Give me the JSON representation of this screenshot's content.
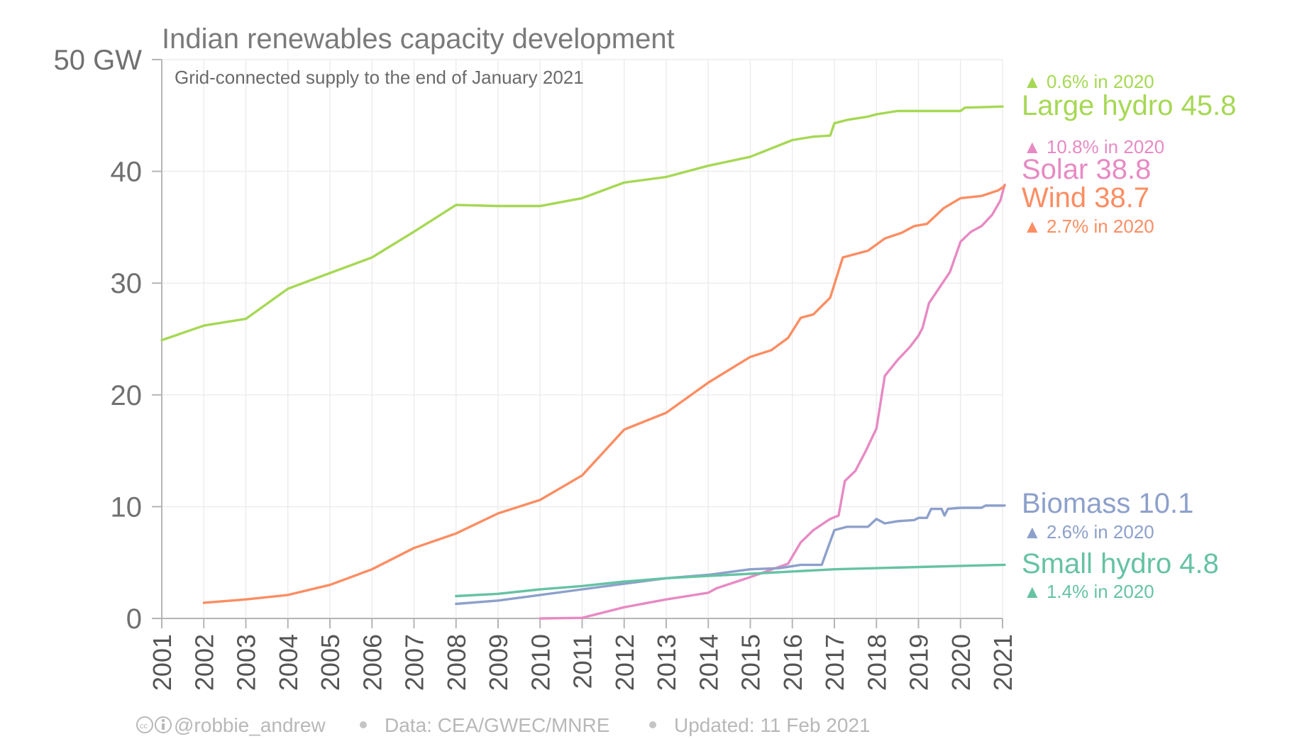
{
  "chart_data": {
    "type": "line",
    "title": "Indian renewables capacity development",
    "subtitle": "Grid-connected supply to the end of January 2021",
    "ylabel": "",
    "xlabel": "",
    "ylim": [
      0,
      50
    ],
    "xlim": [
      2001,
      2021
    ],
    "y_ticks": [
      "0",
      "10",
      "20",
      "30",
      "40",
      "50 GW"
    ],
    "x_ticks": [
      "2001",
      "2002",
      "2003",
      "2004",
      "2005",
      "2006",
      "2007",
      "2008",
      "2009",
      "2010",
      "2011",
      "2012",
      "2013",
      "2014",
      "2015",
      "2016",
      "2017",
      "2018",
      "2019",
      "2020",
      "2021"
    ],
    "grid": true,
    "legend": "right, labels next to line ends",
    "series": [
      {
        "name": "Large hydro",
        "label": "Large hydro 45.8",
        "change": "▲ 0.6% in 2020",
        "color": "#a6d854",
        "points": [
          [
            2001,
            24.9
          ],
          [
            2002,
            26.2
          ],
          [
            2003,
            26.8
          ],
          [
            2004,
            29.5
          ],
          [
            2005,
            30.9
          ],
          [
            2006,
            32.3
          ],
          [
            2007,
            34.6
          ],
          [
            2008,
            37.0
          ],
          [
            2009,
            36.9
          ],
          [
            2010,
            36.9
          ],
          [
            2011,
            37.6
          ],
          [
            2012,
            39.0
          ],
          [
            2013,
            39.5
          ],
          [
            2014,
            40.5
          ],
          [
            2015,
            41.3
          ],
          [
            2016,
            42.8
          ],
          [
            2016.5,
            43.1
          ],
          [
            2016.9,
            43.2
          ],
          [
            2017.0,
            44.3
          ],
          [
            2017.3,
            44.6
          ],
          [
            2017.8,
            44.9
          ],
          [
            2018.0,
            45.1
          ],
          [
            2018.5,
            45.4
          ],
          [
            2019.0,
            45.4
          ],
          [
            2019.5,
            45.4
          ],
          [
            2020.0,
            45.4
          ],
          [
            2020.1,
            45.7
          ],
          [
            2021.0,
            45.8
          ]
        ]
      },
      {
        "name": "Solar",
        "label": "Solar 38.8",
        "change": "▲ 10.8% in 2020",
        "color": "#e78ac3",
        "points": [
          [
            2010.0,
            0.0
          ],
          [
            2011.0,
            0.05
          ],
          [
            2012.0,
            1.0
          ],
          [
            2013.0,
            1.7
          ],
          [
            2014.0,
            2.3
          ],
          [
            2014.2,
            2.7
          ],
          [
            2015.0,
            3.7
          ],
          [
            2015.9,
            4.9
          ],
          [
            2016.2,
            6.8
          ],
          [
            2016.5,
            7.9
          ],
          [
            2016.9,
            8.9
          ],
          [
            2017.1,
            9.2
          ],
          [
            2017.25,
            12.3
          ],
          [
            2017.5,
            13.2
          ],
          [
            2017.75,
            15.0
          ],
          [
            2018.0,
            17.0
          ],
          [
            2018.2,
            21.7
          ],
          [
            2018.5,
            23.1
          ],
          [
            2018.8,
            24.3
          ],
          [
            2019.0,
            25.3
          ],
          [
            2019.1,
            26.0
          ],
          [
            2019.25,
            28.2
          ],
          [
            2019.5,
            29.6
          ],
          [
            2019.75,
            31.0
          ],
          [
            2020.0,
            33.7
          ],
          [
            2020.25,
            34.6
          ],
          [
            2020.5,
            35.1
          ],
          [
            2020.75,
            36.1
          ],
          [
            2020.95,
            37.4
          ],
          [
            2021.05,
            38.8
          ]
        ]
      },
      {
        "name": "Wind",
        "label": "Wind 38.7",
        "change": "▲ 2.7% in 2020",
        "color": "#fc8d62",
        "points": [
          [
            2002.0,
            1.4
          ],
          [
            2003.0,
            1.7
          ],
          [
            2004.0,
            2.1
          ],
          [
            2005.0,
            3.0
          ],
          [
            2006.0,
            4.4
          ],
          [
            2007.0,
            6.3
          ],
          [
            2008.0,
            7.6
          ],
          [
            2009.0,
            9.4
          ],
          [
            2010.0,
            10.6
          ],
          [
            2011.0,
            12.8
          ],
          [
            2012.0,
            16.9
          ],
          [
            2013.0,
            18.4
          ],
          [
            2014.0,
            21.1
          ],
          [
            2015.0,
            23.4
          ],
          [
            2015.5,
            24.0
          ],
          [
            2015.9,
            25.1
          ],
          [
            2016.2,
            26.9
          ],
          [
            2016.5,
            27.2
          ],
          [
            2016.9,
            28.7
          ],
          [
            2017.2,
            32.3
          ],
          [
            2017.6,
            32.7
          ],
          [
            2017.8,
            32.9
          ],
          [
            2018.2,
            34.0
          ],
          [
            2018.6,
            34.5
          ],
          [
            2018.9,
            35.1
          ],
          [
            2019.2,
            35.3
          ],
          [
            2019.6,
            36.7
          ],
          [
            2020.0,
            37.6
          ],
          [
            2020.5,
            37.8
          ],
          [
            2020.9,
            38.3
          ],
          [
            2021.05,
            38.7
          ]
        ]
      },
      {
        "name": "Biomass",
        "label": "Biomass 10.1",
        "change": "▲ 2.6% in 2020",
        "color": "#8da0cb",
        "points": [
          [
            2008.0,
            1.3
          ],
          [
            2009.0,
            1.6
          ],
          [
            2010.0,
            2.1
          ],
          [
            2011.0,
            2.6
          ],
          [
            2012.0,
            3.1
          ],
          [
            2013.0,
            3.6
          ],
          [
            2014.0,
            3.9
          ],
          [
            2015.0,
            4.4
          ],
          [
            2015.7,
            4.5
          ],
          [
            2016.2,
            4.8
          ],
          [
            2016.7,
            4.8
          ],
          [
            2017.0,
            7.9
          ],
          [
            2017.3,
            8.2
          ],
          [
            2017.8,
            8.2
          ],
          [
            2018.0,
            8.9
          ],
          [
            2018.2,
            8.5
          ],
          [
            2018.5,
            8.7
          ],
          [
            2018.9,
            8.8
          ],
          [
            2019.0,
            9.0
          ],
          [
            2019.2,
            9.0
          ],
          [
            2019.3,
            9.8
          ],
          [
            2019.55,
            9.8
          ],
          [
            2019.62,
            9.2
          ],
          [
            2019.7,
            9.8
          ],
          [
            2020.0,
            9.9
          ],
          [
            2020.5,
            9.9
          ],
          [
            2020.6,
            10.1
          ],
          [
            2021.05,
            10.1
          ]
        ]
      },
      {
        "name": "Small hydro",
        "label": "Small hydro 4.8",
        "change": "▲ 1.4% in 2020",
        "color": "#66c2a5",
        "points": [
          [
            2008.0,
            2.0
          ],
          [
            2009.0,
            2.2
          ],
          [
            2010.0,
            2.6
          ],
          [
            2011.0,
            2.9
          ],
          [
            2012.0,
            3.3
          ],
          [
            2013.0,
            3.6
          ],
          [
            2014.0,
            3.8
          ],
          [
            2015.0,
            4.0
          ],
          [
            2016.0,
            4.2
          ],
          [
            2017.0,
            4.4
          ],
          [
            2018.0,
            4.5
          ],
          [
            2019.0,
            4.6
          ],
          [
            2020.0,
            4.7
          ],
          [
            2021.05,
            4.8
          ]
        ]
      }
    ]
  },
  "footer": {
    "license_icon": "cc-by-icon",
    "author": "@robbie_andrew",
    "data_source": "Data: CEA/GWEC/MNRE",
    "updated": "Updated: 11 Feb 2021"
  }
}
